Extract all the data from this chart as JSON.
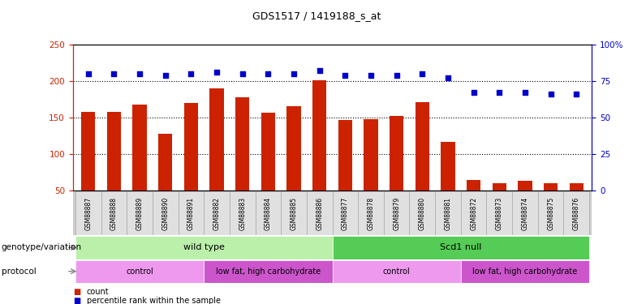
{
  "title": "GDS1517 / 1419188_s_at",
  "samples": [
    "GSM88887",
    "GSM88888",
    "GSM88889",
    "GSM88890",
    "GSM88891",
    "GSM88882",
    "GSM88883",
    "GSM88884",
    "GSM88885",
    "GSM88886",
    "GSM88877",
    "GSM88878",
    "GSM88879",
    "GSM88880",
    "GSM88881",
    "GSM88872",
    "GSM88873",
    "GSM88874",
    "GSM88875",
    "GSM88876"
  ],
  "counts": [
    158,
    157,
    167,
    128,
    170,
    190,
    178,
    156,
    165,
    201,
    146,
    147,
    152,
    171,
    116,
    64,
    60,
    63,
    60,
    60
  ],
  "percentile_ranks": [
    80,
    80,
    80,
    79,
    80,
    81,
    80,
    80,
    80,
    82,
    79,
    79,
    79,
    80,
    77,
    67,
    67,
    67,
    66,
    66
  ],
  "ylim_left": [
    50,
    250
  ],
  "ylim_right": [
    0,
    100
  ],
  "yticks_left": [
    50,
    100,
    150,
    200,
    250
  ],
  "yticks_right": [
    0,
    25,
    50,
    75,
    100
  ],
  "ytick_labels_right": [
    "0",
    "25",
    "50",
    "75",
    "100%"
  ],
  "bar_color": "#cc2200",
  "dot_color": "#0000cc",
  "bar_width": 0.55,
  "genotype_groups": [
    {
      "label": "wild type",
      "start": 0,
      "end": 10,
      "color": "#bbf0aa"
    },
    {
      "label": "Scd1 null",
      "start": 10,
      "end": 20,
      "color": "#55cc55"
    }
  ],
  "protocol_groups": [
    {
      "label": "control",
      "start": 0,
      "end": 5,
      "color": "#ee99ee"
    },
    {
      "label": "low fat, high carbohydrate",
      "start": 5,
      "end": 10,
      "color": "#cc55cc"
    },
    {
      "label": "control",
      "start": 10,
      "end": 15,
      "color": "#ee99ee"
    },
    {
      "label": "low fat, high carbohydrate",
      "start": 15,
      "end": 20,
      "color": "#cc55cc"
    }
  ],
  "legend_items": [
    {
      "label": "count",
      "color": "#cc2200"
    },
    {
      "label": "percentile rank within the sample",
      "color": "#0000cc"
    }
  ],
  "background_color": "#ffffff",
  "plot_bg_color": "#ffffff",
  "xtick_bg_color": "#dddddd",
  "grid_color": "#000000",
  "dotted_lines": [
    100,
    150,
    200
  ],
  "left_axis_color": "#cc2200",
  "right_axis_color": "#0000cc",
  "genotype_label": "genotype/variation",
  "protocol_label": "protocol"
}
